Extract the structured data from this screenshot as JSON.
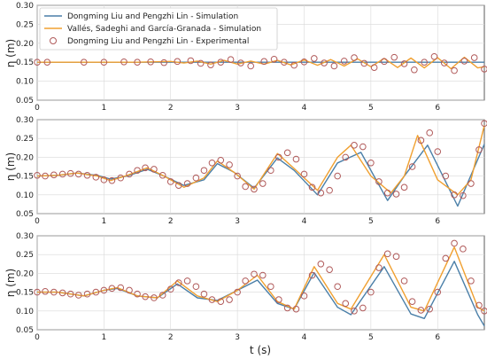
{
  "chart_data": [
    {
      "type": "line",
      "panel": "wave-gauge-1",
      "xlabel": "",
      "ylabel": "η (m)",
      "xlim": [
        0,
        6.7
      ],
      "ylim": [
        0.05,
        0.3
      ],
      "xticks": [
        0,
        1,
        2,
        3,
        4,
        5,
        6
      ],
      "yticks": [
        0.05,
        0.1,
        0.15,
        0.2,
        0.25,
        0.3
      ],
      "ytick_labels": [
        "0.05",
        "0.10",
        "0.15",
        "0.20",
        "0.25",
        "0.30"
      ],
      "grid": true,
      "legend": {
        "placement": "top-left",
        "entries": [
          {
            "label": "Dongming Liu and Pengzhi Lin - Simulation",
            "color": "#4a7fa8",
            "marker": "line"
          },
          {
            "label": "Vallés, Sadeghi and García-Granada - Simulation",
            "color": "#f0a030",
            "marker": "line"
          },
          {
            "label": "Dongming Liu and Pengzhi Lin - Experimental",
            "color": "#b05a5a",
            "marker": "circle"
          }
        ]
      },
      "series": [
        {
          "color": "#4a7fa8",
          "x": [
            0,
            6.7
          ],
          "y": [
            0.15,
            0.15
          ]
        },
        {
          "color": "#f0a030",
          "x": [
            0,
            1.5,
            2.0,
            2.2,
            2.4,
            2.6,
            2.8,
            3.0,
            3.2,
            3.4,
            3.6,
            3.8,
            4.0,
            4.2,
            4.4,
            4.6,
            4.8,
            5.0,
            5.2,
            5.4,
            5.6,
            5.8,
            6.0,
            6.2,
            6.4,
            6.6,
            6.7
          ],
          "y": [
            0.15,
            0.15,
            0.152,
            0.148,
            0.153,
            0.145,
            0.155,
            0.145,
            0.153,
            0.145,
            0.155,
            0.143,
            0.156,
            0.142,
            0.157,
            0.14,
            0.159,
            0.138,
            0.16,
            0.136,
            0.161,
            0.135,
            0.162,
            0.133,
            0.163,
            0.135,
            0.138
          ]
        },
        {
          "color": "#b05a5a",
          "marker": "circle",
          "x": [
            0.0,
            0.15,
            0.7,
            1.0,
            1.3,
            1.5,
            1.7,
            1.9,
            2.1,
            2.3,
            2.45,
            2.6,
            2.75,
            2.9,
            3.05,
            3.2,
            3.4,
            3.55,
            3.7,
            3.85,
            4.0,
            4.15,
            4.3,
            4.45,
            4.6,
            4.75,
            4.9,
            5.05,
            5.2,
            5.35,
            5.5,
            5.65,
            5.8,
            5.95,
            6.1,
            6.25,
            6.4,
            6.55,
            6.7
          ],
          "y": [
            0.15,
            0.15,
            0.15,
            0.15,
            0.151,
            0.15,
            0.151,
            0.149,
            0.152,
            0.154,
            0.147,
            0.143,
            0.15,
            0.157,
            0.148,
            0.14,
            0.152,
            0.158,
            0.15,
            0.142,
            0.151,
            0.16,
            0.148,
            0.14,
            0.153,
            0.162,
            0.147,
            0.136,
            0.152,
            0.163,
            0.146,
            0.13,
            0.15,
            0.165,
            0.148,
            0.128,
            0.153,
            0.162,
            0.132
          ]
        }
      ]
    },
    {
      "type": "line",
      "panel": "wave-gauge-2",
      "xlabel": "",
      "ylabel": "η (m)",
      "xlim": [
        0,
        6.7
      ],
      "ylim": [
        0.05,
        0.3
      ],
      "xticks": [
        0,
        1,
        2,
        3,
        4,
        5,
        6
      ],
      "yticks": [
        0.05,
        0.1,
        0.15,
        0.2,
        0.25,
        0.3
      ],
      "ytick_labels": [
        "0.05",
        "0.10",
        "0.15",
        "0.20",
        "0.25",
        "0.30"
      ],
      "grid": true,
      "series": [
        {
          "color": "#4a7fa8",
          "x": [
            0,
            0.3,
            0.6,
            0.9,
            1.1,
            1.35,
            1.65,
            1.9,
            2.2,
            2.5,
            2.7,
            2.95,
            3.25,
            3.6,
            3.85,
            4.2,
            4.5,
            4.85,
            5.25,
            5.5,
            5.85,
            6.3,
            6.7
          ],
          "y": [
            0.15,
            0.152,
            0.158,
            0.152,
            0.142,
            0.15,
            0.168,
            0.15,
            0.125,
            0.14,
            0.183,
            0.16,
            0.118,
            0.198,
            0.165,
            0.1,
            0.185,
            0.213,
            0.085,
            0.15,
            0.232,
            0.07,
            0.235
          ]
        },
        {
          "color": "#f0a030",
          "x": [
            0,
            0.3,
            0.6,
            0.9,
            1.1,
            1.35,
            1.65,
            1.9,
            2.2,
            2.5,
            2.7,
            2.95,
            3.25,
            3.6,
            3.85,
            4.2,
            4.5,
            4.7,
            5.0,
            5.3,
            5.5,
            5.7,
            6.0,
            6.3,
            6.5,
            6.7
          ],
          "y": [
            0.15,
            0.152,
            0.158,
            0.15,
            0.138,
            0.152,
            0.172,
            0.15,
            0.12,
            0.145,
            0.19,
            0.16,
            0.115,
            0.21,
            0.17,
            0.112,
            0.2,
            0.232,
            0.15,
            0.105,
            0.15,
            0.258,
            0.14,
            0.1,
            0.14,
            0.285
          ]
        },
        {
          "color": "#b05a5a",
          "marker": "circle",
          "x": [
            0.0,
            0.12,
            0.25,
            0.38,
            0.5,
            0.62,
            0.75,
            0.88,
            1.0,
            1.12,
            1.25,
            1.38,
            1.5,
            1.62,
            1.75,
            1.88,
            2.0,
            2.12,
            2.25,
            2.38,
            2.5,
            2.62,
            2.75,
            2.88,
            3.0,
            3.12,
            3.25,
            3.38,
            3.5,
            3.62,
            3.75,
            3.88,
            4.0,
            4.12,
            4.25,
            4.38,
            4.5,
            4.62,
            4.75,
            4.88,
            5.0,
            5.12,
            5.25,
            5.38,
            5.5,
            5.62,
            5.75,
            5.88,
            6.0,
            6.12,
            6.25,
            6.38,
            6.5,
            6.62,
            6.7
          ],
          "y": [
            0.152,
            0.15,
            0.153,
            0.155,
            0.157,
            0.155,
            0.152,
            0.147,
            0.14,
            0.138,
            0.145,
            0.155,
            0.165,
            0.172,
            0.168,
            0.152,
            0.135,
            0.125,
            0.13,
            0.145,
            0.165,
            0.185,
            0.192,
            0.18,
            0.15,
            0.122,
            0.115,
            0.13,
            0.165,
            0.2,
            0.212,
            0.195,
            0.155,
            0.12,
            0.105,
            0.112,
            0.15,
            0.2,
            0.232,
            0.228,
            0.185,
            0.135,
            0.105,
            0.102,
            0.12,
            0.175,
            0.245,
            0.265,
            0.215,
            0.15,
            0.1,
            0.098,
            0.13,
            0.22,
            0.29
          ]
        }
      ]
    },
    {
      "type": "line",
      "panel": "wave-gauge-3",
      "xlabel": "t (s)",
      "ylabel": "η (m)",
      "xlim": [
        0,
        6.7
      ],
      "ylim": [
        0.05,
        0.3
      ],
      "xticks": [
        0,
        1,
        2,
        3,
        4,
        5,
        6
      ],
      "yticks": [
        0.05,
        0.1,
        0.15,
        0.2,
        0.25,
        0.3
      ],
      "ytick_labels": [
        "0.05",
        "0.10",
        "0.15",
        "0.20",
        "0.25",
        "0.30"
      ],
      "grid": true,
      "series": [
        {
          "color": "#4a7fa8",
          "x": [
            0,
            0.3,
            0.7,
            1.0,
            1.2,
            1.5,
            1.8,
            2.1,
            2.4,
            2.7,
            3.0,
            3.3,
            3.6,
            3.85,
            4.15,
            4.5,
            4.7,
            5.2,
            5.6,
            5.8,
            6.25,
            6.6,
            6.7
          ],
          "y": [
            0.15,
            0.15,
            0.14,
            0.155,
            0.16,
            0.14,
            0.135,
            0.172,
            0.135,
            0.128,
            0.155,
            0.182,
            0.12,
            0.105,
            0.202,
            0.11,
            0.09,
            0.218,
            0.092,
            0.08,
            0.232,
            0.09,
            0.06
          ]
        },
        {
          "color": "#f0a030",
          "x": [
            0,
            0.3,
            0.7,
            1.0,
            1.2,
            1.5,
            1.8,
            2.1,
            2.4,
            2.7,
            3.0,
            3.3,
            3.6,
            3.85,
            4.15,
            4.5,
            4.7,
            5.2,
            5.6,
            5.8,
            6.25,
            6.6,
            6.7
          ],
          "y": [
            0.15,
            0.15,
            0.14,
            0.155,
            0.162,
            0.14,
            0.135,
            0.18,
            0.14,
            0.125,
            0.155,
            0.195,
            0.125,
            0.105,
            0.218,
            0.12,
            0.105,
            0.25,
            0.11,
            0.1,
            0.27,
            0.11,
            0.1
          ]
        },
        {
          "color": "#b05a5a",
          "marker": "circle",
          "x": [
            0.0,
            0.12,
            0.25,
            0.38,
            0.5,
            0.62,
            0.75,
            0.88,
            1.0,
            1.12,
            1.25,
            1.38,
            1.5,
            1.62,
            1.75,
            1.88,
            2.0,
            2.12,
            2.25,
            2.38,
            2.5,
            2.62,
            2.75,
            2.88,
            3.0,
            3.12,
            3.25,
            3.38,
            3.5,
            3.62,
            3.75,
            3.88,
            4.0,
            4.12,
            4.25,
            4.38,
            4.5,
            4.62,
            4.75,
            4.88,
            5.0,
            5.12,
            5.25,
            5.38,
            5.5,
            5.62,
            5.75,
            5.88,
            6.0,
            6.12,
            6.25,
            6.38,
            6.5,
            6.62,
            6.7
          ],
          "y": [
            0.15,
            0.152,
            0.15,
            0.148,
            0.145,
            0.142,
            0.145,
            0.15,
            0.155,
            0.16,
            0.162,
            0.155,
            0.145,
            0.138,
            0.135,
            0.142,
            0.158,
            0.175,
            0.18,
            0.165,
            0.145,
            0.13,
            0.125,
            0.13,
            0.15,
            0.18,
            0.198,
            0.195,
            0.165,
            0.13,
            0.108,
            0.105,
            0.14,
            0.195,
            0.225,
            0.21,
            0.165,
            0.12,
            0.1,
            0.108,
            0.15,
            0.215,
            0.252,
            0.245,
            0.18,
            0.125,
            0.102,
            0.105,
            0.15,
            0.24,
            0.28,
            0.265,
            0.18,
            0.115,
            0.1
          ]
        }
      ]
    }
  ]
}
